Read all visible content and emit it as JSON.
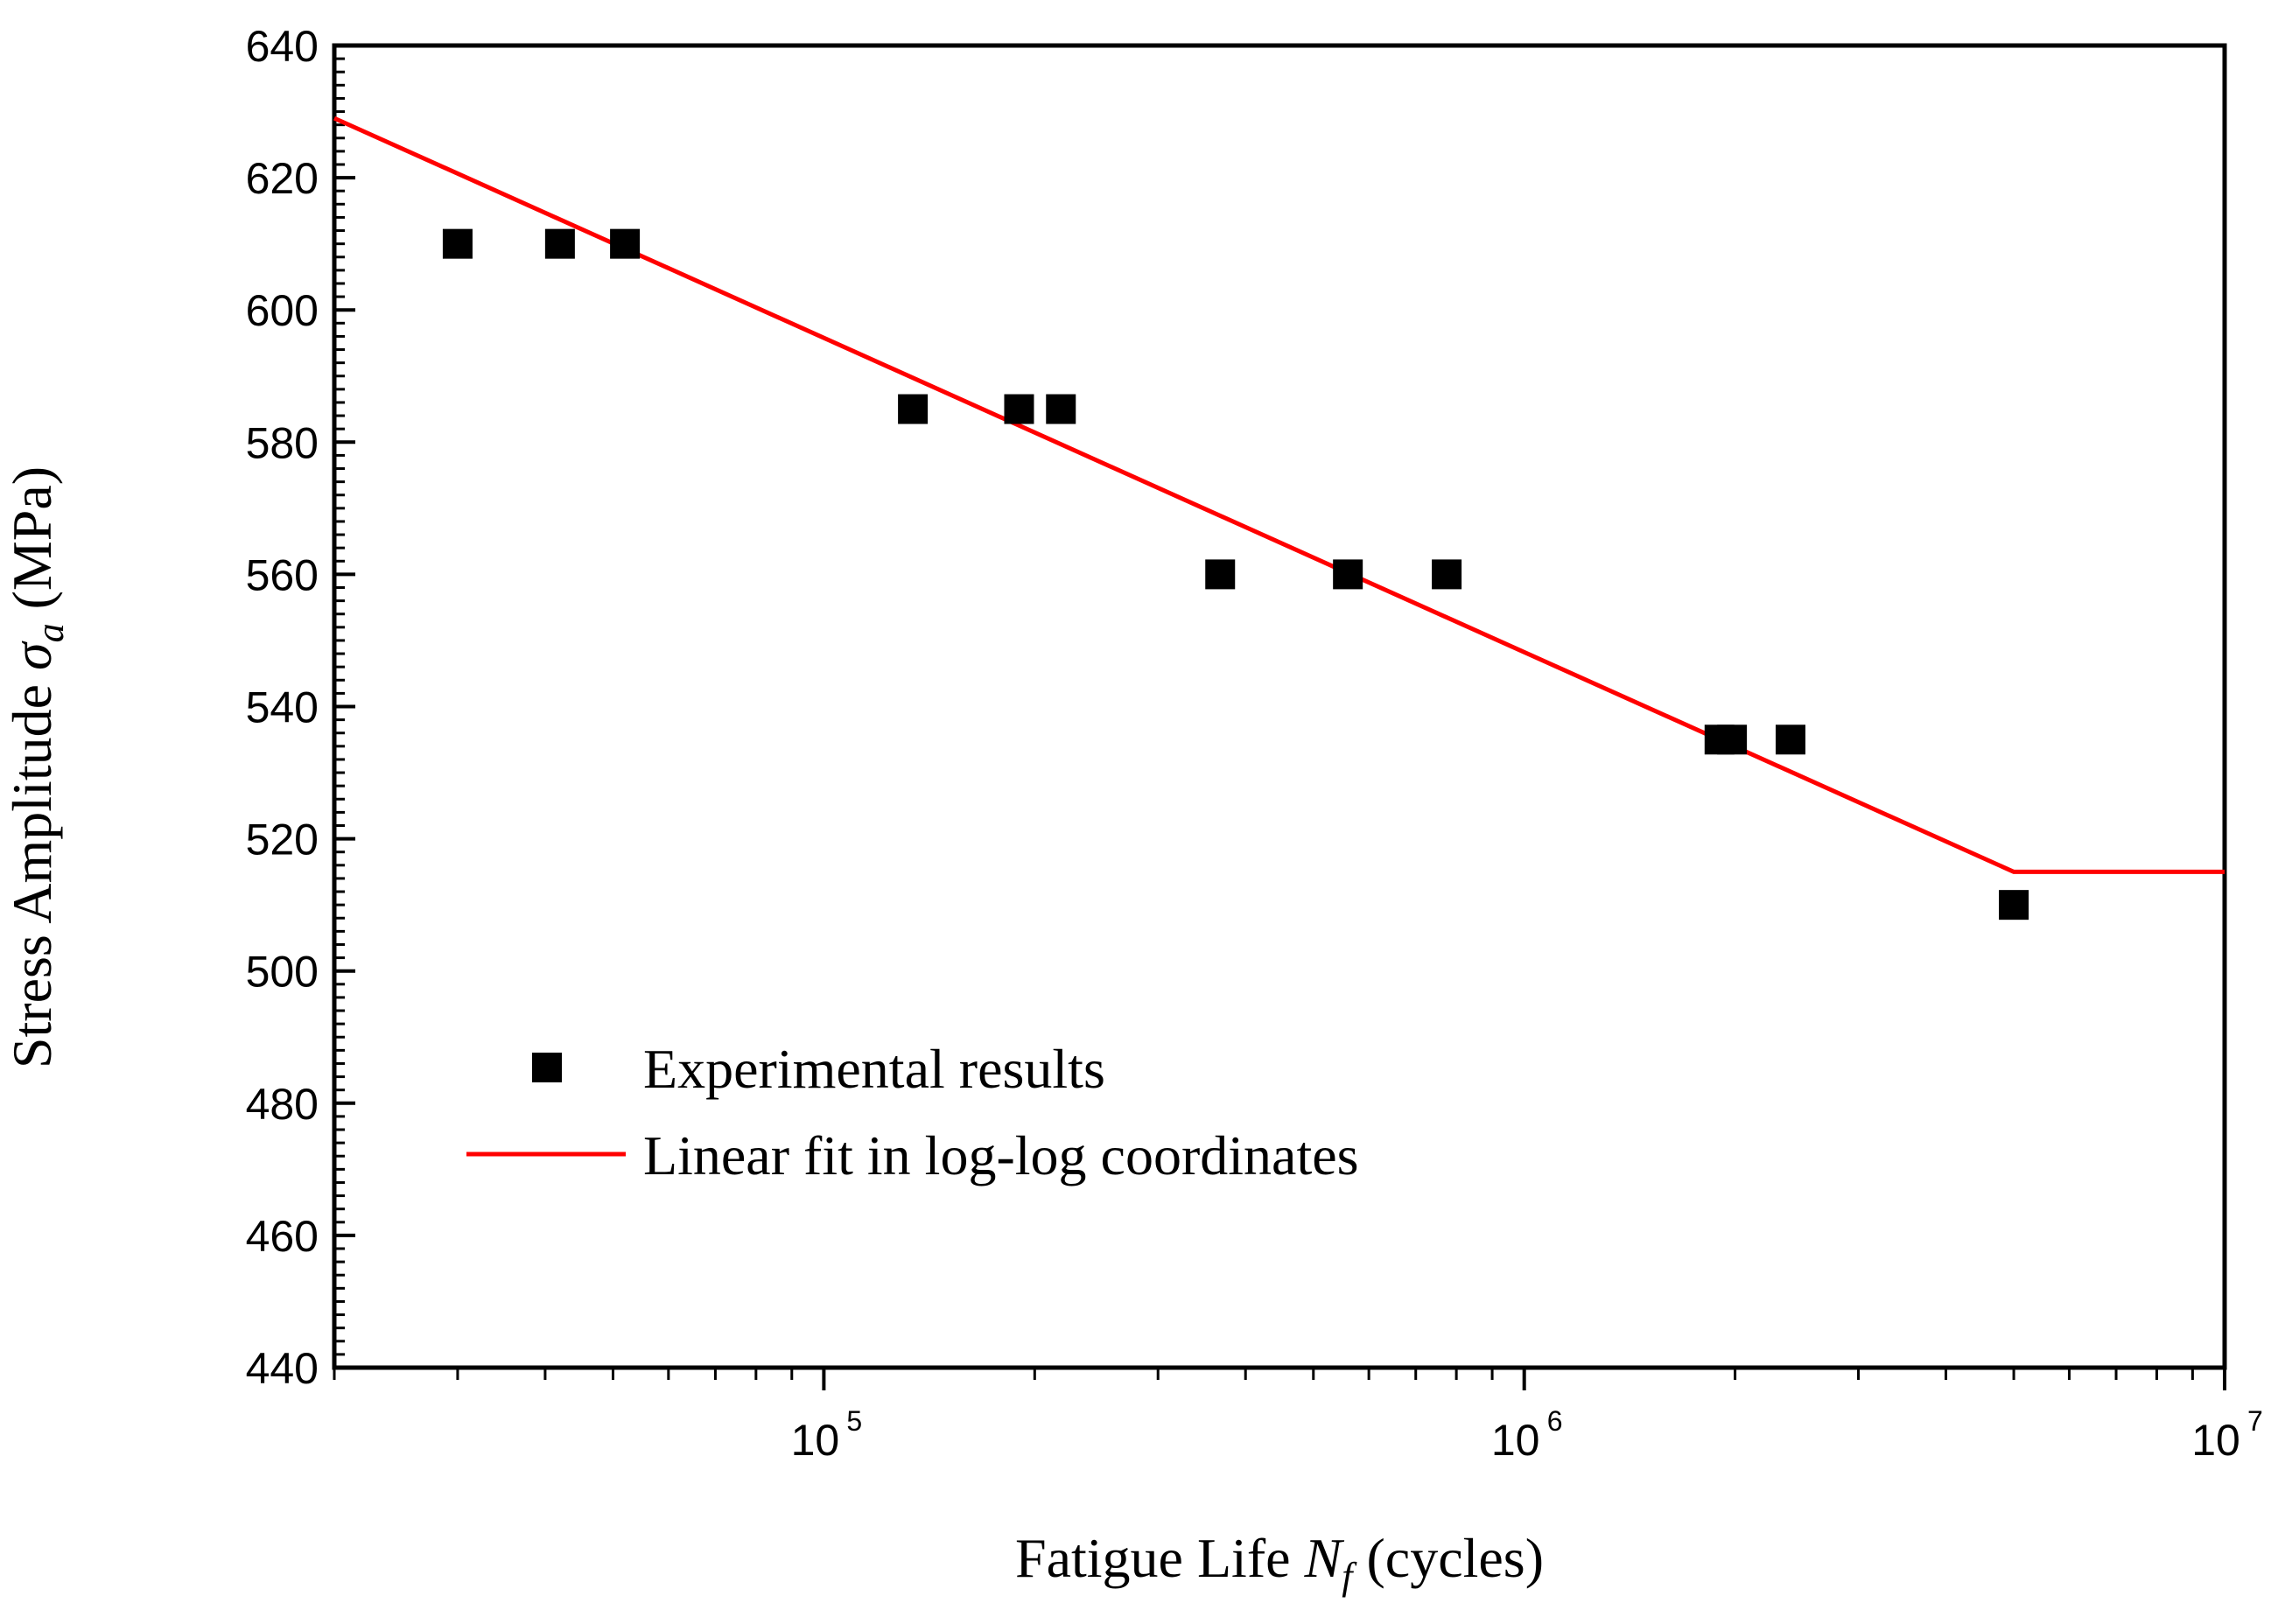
{
  "chart_data": {
    "type": "scatter",
    "xlabel": {
      "prefix": "Fatigue Life ",
      "symbol": "N",
      "sub": "f",
      "suffix": " (cycles)"
    },
    "ylabel": {
      "prefix": "Stress Amplitude ",
      "symbol": "σ",
      "sub": "a",
      "suffix": " (MPa)"
    },
    "x_scale": "log",
    "xlim": [
      20000,
      10000000
    ],
    "ylim": [
      440,
      640
    ],
    "y_ticks": [
      "440",
      "460",
      "480",
      "500",
      "520",
      "540",
      "560",
      "580",
      "600",
      "620",
      "640"
    ],
    "x_ticks": [
      {
        "value": 100000,
        "base": "10",
        "exp": "5"
      },
      {
        "value": 1000000,
        "base": "10",
        "exp": "6"
      },
      {
        "value": 10000000,
        "base": "10",
        "exp": "7"
      }
    ],
    "grid": false,
    "legend_position": "bottom-left",
    "series": [
      {
        "name": "Experimental results",
        "kind": "scatter",
        "marker": "square",
        "color": "#000000",
        "points": [
          {
            "x": 30000,
            "y": 610
          },
          {
            "x": 42000,
            "y": 610
          },
          {
            "x": 52000,
            "y": 610
          },
          {
            "x": 134000,
            "y": 585
          },
          {
            "x": 190000,
            "y": 585
          },
          {
            "x": 218000,
            "y": 585
          },
          {
            "x": 368000,
            "y": 560
          },
          {
            "x": 560000,
            "y": 560
          },
          {
            "x": 775000,
            "y": 560
          },
          {
            "x": 1900000,
            "y": 535
          },
          {
            "x": 1980000,
            "y": 535
          },
          {
            "x": 2400000,
            "y": 535
          },
          {
            "x": 5000000,
            "y": 510
          }
        ]
      },
      {
        "name": "Linear fit in log-log coordinates",
        "kind": "line",
        "color": "#ff0000",
        "points": [
          {
            "x": 20000,
            "y": 629
          },
          {
            "x": 5000000,
            "y": 515
          },
          {
            "x": 10000000,
            "y": 515
          }
        ]
      }
    ]
  }
}
